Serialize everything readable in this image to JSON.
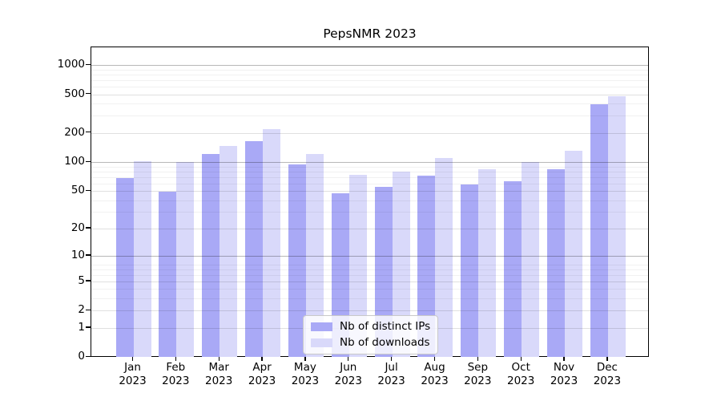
{
  "title": "PepsNMR 2023",
  "legend": {
    "items": [
      {
        "label": "Nb of distinct IPs",
        "series_key": "distinct_ips"
      },
      {
        "label": "Nb of downloads",
        "series_key": "downloads"
      }
    ]
  },
  "colors": {
    "distinct_ips": "#a9a9f6",
    "downloads": "#d9d9fa",
    "axis": "#000000",
    "grid_major": "rgba(0,0,0,0.28)",
    "grid_labeled": "rgba(0,0,0,0.12)",
    "grid_minor": "rgba(0,0,0,0.055)",
    "legend_border": "#c9c9c9"
  },
  "chart_data": {
    "type": "bar",
    "title": "PepsNMR 2023",
    "categories": [
      "Jan",
      "Feb",
      "Mar",
      "Apr",
      "May",
      "Jun",
      "Jul",
      "Aug",
      "Sep",
      "Oct",
      "Nov",
      "Dec"
    ],
    "category_year": "2023",
    "series": [
      {
        "name": "Nb of distinct IPs",
        "values": [
          68,
          49,
          120,
          164,
          94,
          47,
          55,
          72,
          58,
          63,
          84,
          392
        ]
      },
      {
        "name": "Nb of downloads",
        "values": [
          102,
          100,
          146,
          220,
          121,
          74,
          80,
          110,
          84,
          101,
          130,
          475
        ]
      }
    ],
    "yscale": "log1p",
    "y_ticks": [
      0,
      1,
      2,
      5,
      10,
      20,
      50,
      100,
      200,
      500,
      1000
    ],
    "y_gridlines_major": [
      10,
      100,
      1000
    ],
    "y_gridlines_labeled": [
      1,
      2,
      5,
      20,
      50,
      200,
      500
    ],
    "y_gridlines_minor": [
      3,
      4,
      6,
      7,
      8,
      30,
      40,
      60,
      70,
      80,
      90,
      300,
      400,
      600,
      700,
      800,
      900
    ],
    "ylim": [
      0,
      1500
    ],
    "xlabel": "",
    "ylabel": "",
    "grid": true,
    "legend_position": "lower center"
  }
}
